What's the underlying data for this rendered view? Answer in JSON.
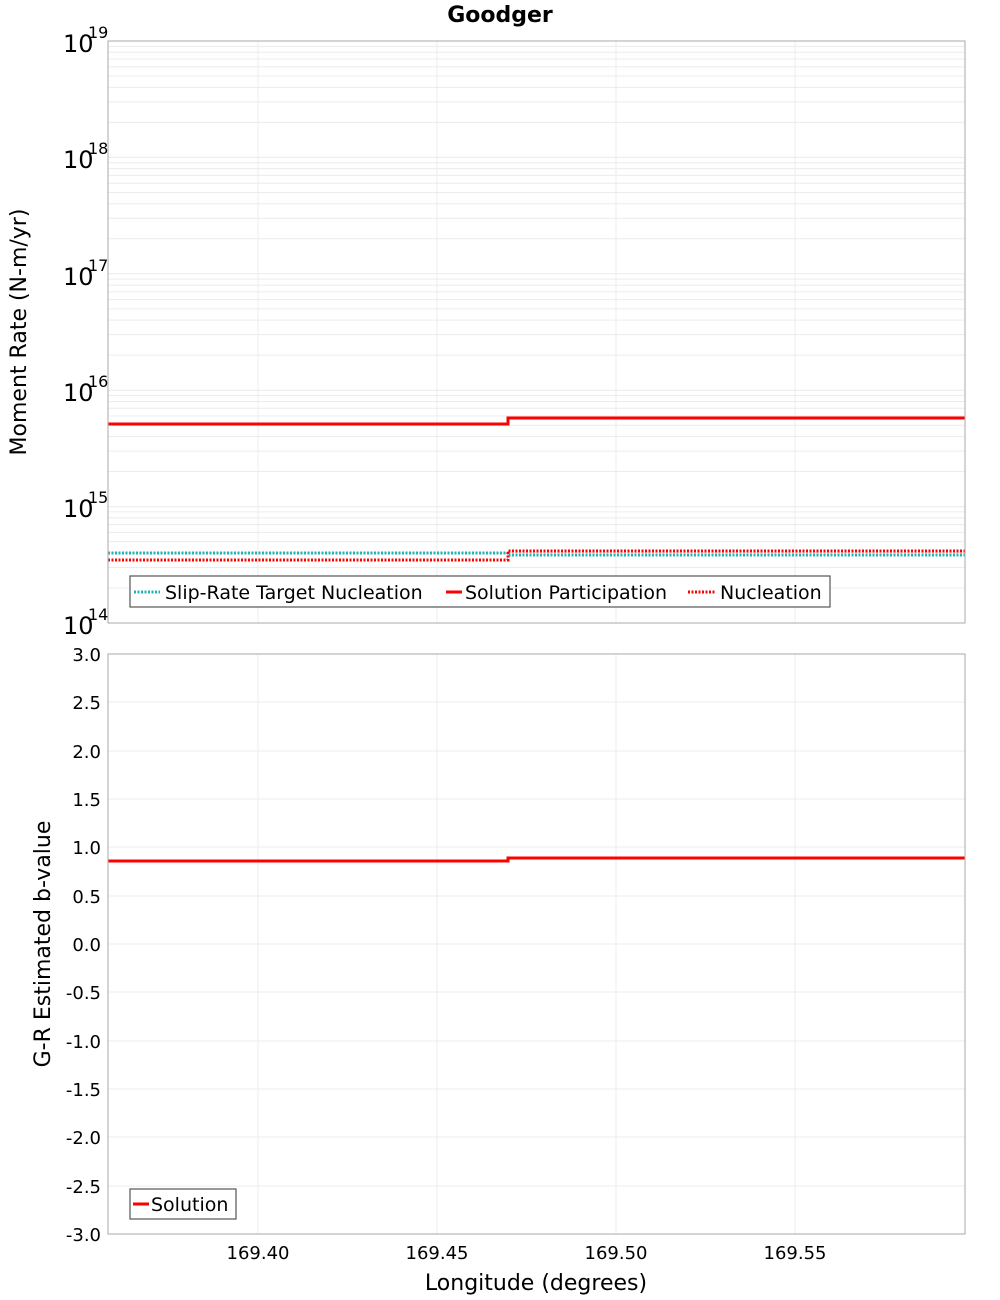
{
  "title": "Goodger",
  "chart_data": [
    {
      "type": "line",
      "title": "Goodger",
      "xlabel": "Longitude (degrees)",
      "ylabel": "Moment Rate (N-m/yr)",
      "yscale": "log",
      "ylim": [
        100000000000000.0,
        1e+19
      ],
      "xlim": [
        169.358,
        169.597
      ],
      "grid": true,
      "legend_position": "lower-left",
      "y_tick_labels": [
        {
          "base": "10",
          "exp": "19"
        },
        {
          "base": "10",
          "exp": "18"
        },
        {
          "base": "10",
          "exp": "17"
        },
        {
          "base": "10",
          "exp": "16"
        },
        {
          "base": "10",
          "exp": "15"
        },
        {
          "base": "10",
          "exp": "14"
        }
      ],
      "series": [
        {
          "name": "Slip-Rate Target Nucleation",
          "style": "dotted",
          "color": "#1fb5b5",
          "x": [
            169.358,
            169.47,
            169.47,
            169.597
          ],
          "values": [
            400000000000000.0,
            400000000000000.0,
            390000000000000.0,
            390000000000000.0
          ]
        },
        {
          "name": "Solution Participation",
          "style": "solid",
          "color": "#ff0000",
          "x": [
            169.358,
            169.47,
            169.47,
            169.597
          ],
          "values": [
            5100000000000000.0,
            5100000000000000.0,
            5700000000000000.0,
            5700000000000000.0
          ]
        },
        {
          "name": "Nucleation",
          "style": "dotted",
          "color": "#ff0000",
          "x": [
            169.358,
            169.47,
            169.47,
            169.597
          ],
          "values": [
            350000000000000.0,
            350000000000000.0,
            420000000000000.0,
            420000000000000.0
          ]
        }
      ]
    },
    {
      "type": "line",
      "xlabel": "Longitude (degrees)",
      "ylabel": "G-R Estimated b-value",
      "ylim": [
        -3.0,
        3.0
      ],
      "xlim": [
        169.358,
        169.597
      ],
      "grid": true,
      "legend_position": "lower-left",
      "y_ticks": [
        "3.0",
        "2.5",
        "2.0",
        "1.5",
        "1.0",
        "0.5",
        "0.0",
        "-0.5",
        "-1.0",
        "-1.5",
        "-2.0",
        "-2.5",
        "-3.0"
      ],
      "x_ticks": [
        "169.40",
        "169.45",
        "169.50",
        "169.55"
      ],
      "series": [
        {
          "name": "Solution",
          "style": "solid",
          "color": "#ff0000",
          "x": [
            169.358,
            169.47,
            169.47,
            169.597
          ],
          "values": [
            0.86,
            0.86,
            0.89,
            0.89
          ]
        }
      ]
    }
  ],
  "legend_top": [
    "Slip-Rate Target Nucleation",
    "Solution Participation",
    "Nucleation"
  ],
  "legend_bottom": [
    "Solution"
  ],
  "x_ticks": [
    "169.40",
    "169.45",
    "169.50",
    "169.55"
  ],
  "xlabel": "Longitude (degrees)",
  "ylabel_top": "Moment Rate (N-m/yr)",
  "ylabel_bottom": "G-R Estimated b-value",
  "b_ticks": [
    "3.0",
    "2.5",
    "2.0",
    "1.5",
    "1.0",
    "0.5",
    "0.0",
    "-0.5",
    "-1.0",
    "-1.5",
    "-2.0",
    "-2.5",
    "-3.0"
  ],
  "colors": {
    "target": "#1fb5b5",
    "solution": "#ff0000",
    "grid": "#ececec",
    "frame": "#aaaaaa"
  }
}
